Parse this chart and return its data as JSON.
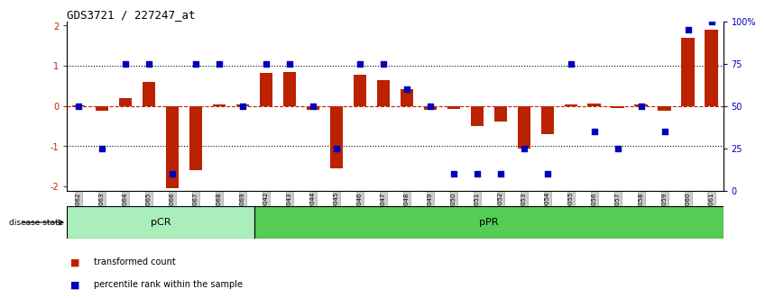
{
  "title": "GDS3721 / 227247_at",
  "samples": [
    "GSM559062",
    "GSM559063",
    "GSM559064",
    "GSM559065",
    "GSM559066",
    "GSM559067",
    "GSM559068",
    "GSM559069",
    "GSM559042",
    "GSM559043",
    "GSM559044",
    "GSM559045",
    "GSM559046",
    "GSM559047",
    "GSM559048",
    "GSM559049",
    "GSM559050",
    "GSM559051",
    "GSM559052",
    "GSM559053",
    "GSM559054",
    "GSM559055",
    "GSM559056",
    "GSM559057",
    "GSM559058",
    "GSM559059",
    "GSM559060",
    "GSM559061"
  ],
  "bar_values": [
    0.02,
    -0.12,
    0.2,
    0.6,
    -2.05,
    -1.6,
    0.04,
    0.04,
    0.82,
    0.84,
    -0.1,
    -1.55,
    0.78,
    0.65,
    0.43,
    -0.1,
    -0.08,
    -0.5,
    -0.38,
    -1.05,
    -0.7,
    0.03,
    0.06,
    -0.04,
    0.05,
    -0.12,
    1.7,
    1.9
  ],
  "dot_pct": [
    50,
    25,
    75,
    75,
    10,
    75,
    75,
    50,
    75,
    75,
    50,
    25,
    75,
    75,
    60,
    50,
    10,
    10,
    10,
    25,
    10,
    75,
    35,
    25,
    50,
    35,
    95,
    100
  ],
  "pCR_count": 8,
  "pPR_count": 20,
  "ylim_left": [
    -2.1,
    2.1
  ],
  "left_ticks": [
    -2,
    -1,
    0,
    1,
    2
  ],
  "right_ticks": [
    0,
    25,
    50,
    75,
    100
  ],
  "right_tick_labels": [
    "0",
    "25",
    "50",
    "75",
    "100%"
  ],
  "bar_color": "#bb2200",
  "dot_color": "#0000bb",
  "pCR_light_color": "#aaeebb",
  "pPR_dark_color": "#55cc55",
  "tick_bg_color": "#cccccc",
  "tick_edge_color": "#999999"
}
